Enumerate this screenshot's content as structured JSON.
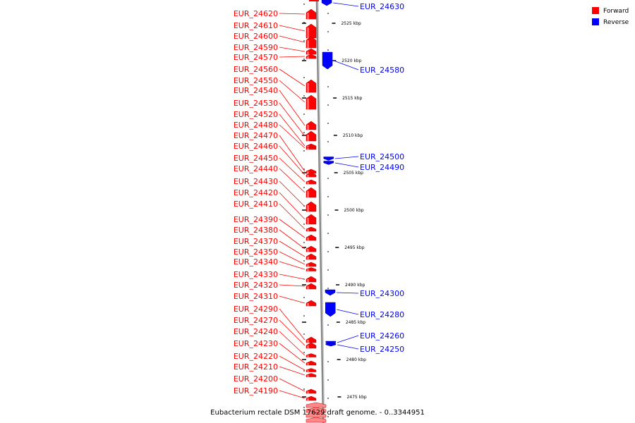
{
  "caption": "Eubacterium rectale DSM 17629 draft genome. - 0..3344951",
  "legend": [
    {
      "label": "Forward",
      "color": "#ff0000"
    },
    {
      "label": "Reverse",
      "color": "#0000ff"
    }
  ],
  "colors": {
    "forward": "#ff0000",
    "reverse": "#0000ff",
    "backbone": "#888888",
    "ticks": "#000000"
  },
  "forward_genes": [
    "EUR_24620",
    "EUR_24610",
    "EUR_24600",
    "EUR_24590",
    "EUR_24570",
    "EUR_24560",
    "EUR_24550",
    "EUR_24540",
    "EUR_24530",
    "EUR_24520",
    "EUR_24480",
    "EUR_24470",
    "EUR_24460",
    "EUR_24450",
    "EUR_24440",
    "EUR_24430",
    "EUR_24420",
    "EUR_24410",
    "EUR_24390",
    "EUR_24380",
    "EUR_24370",
    "EUR_24350",
    "EUR_24340",
    "EUR_24330",
    "EUR_24320",
    "EUR_24310",
    "EUR_24290",
    "EUR_24270",
    "EUR_24240",
    "EUR_24230",
    "EUR_24220",
    "EUR_24210",
    "EUR_24200",
    "EUR_24190"
  ],
  "reverse_genes": [
    "EUR_24630",
    "EUR_24580",
    "EUR_24500",
    "EUR_24490",
    "EUR_24300",
    "EUR_24280",
    "EUR_24260",
    "EUR_24250"
  ],
  "kbp_ticks": [
    "2525 kbp",
    "2520 kbp",
    "2515 kbp",
    "2510 kbp",
    "2505 kbp",
    "2500 kbp",
    "2495 kbp",
    "2490 kbp",
    "2485 kbp",
    "2480 kbp",
    "2475 kbp"
  ]
}
